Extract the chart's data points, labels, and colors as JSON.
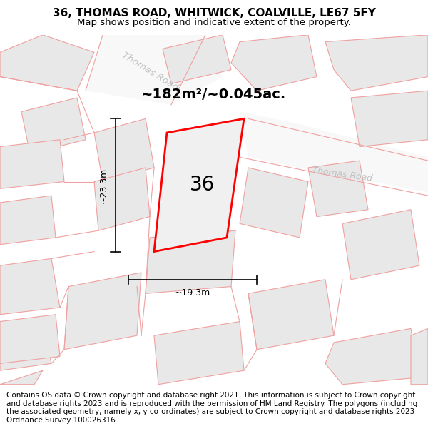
{
  "title": "36, THOMAS ROAD, WHITWICK, COALVILLE, LE67 5FY",
  "subtitle": "Map shows position and indicative extent of the property.",
  "footer": "Contains OS data © Crown copyright and database right 2021. This information is subject to Crown copyright and database rights 2023 and is reproduced with the permission of HM Land Registry. The polygons (including the associated geometry, namely x, y co-ordinates) are subject to Crown copyright and database rights 2023 Ordnance Survey 100026316.",
  "area_label": "~182m²/~0.045ac.",
  "width_label": "~19.3m",
  "height_label": "~23.3m",
  "house_number": "36",
  "background_color": "#ffffff",
  "parcel_fill": "#e8e8e8",
  "parcel_outline": "#f0a0a0",
  "road_fill": "#f5f5f5",
  "highlight_color": "#ff0000",
  "road_label_color": "#c0c0c0",
  "road_label_1": "Thomas Road",
  "road_label_2": "Thomas Road",
  "title_fontsize": 11,
  "subtitle_fontsize": 9.5,
  "footer_fontsize": 7.5,
  "area_fontsize": 14,
  "dim_fontsize": 9,
  "house_fontsize": 20
}
